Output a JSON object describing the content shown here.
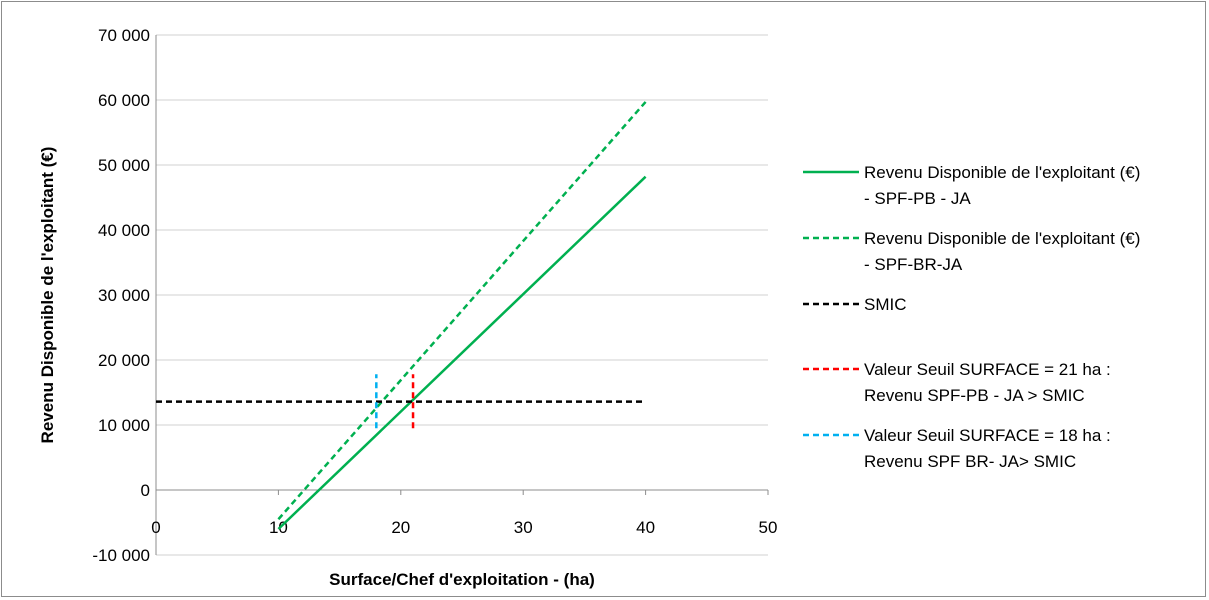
{
  "chart_data": {
    "type": "line",
    "title": "",
    "xlabel": "Surface/Chef d'exploitation - (ha)",
    "ylabel": "Revenu Disponible de l'exploitant (€)",
    "xlim": [
      0,
      50
    ],
    "ylim": [
      -10000,
      70000
    ],
    "x_ticks": [
      0,
      10,
      20,
      30,
      40,
      50
    ],
    "x_tick_labels": [
      "0",
      "10",
      "20",
      "30",
      "40",
      "50"
    ],
    "y_ticks": [
      -10000,
      0,
      10000,
      20000,
      30000,
      40000,
      50000,
      60000,
      70000
    ],
    "y_tick_labels": [
      "-10 000",
      "0",
      "10 000",
      "20 000",
      "30 000",
      "40 000",
      "50 000",
      "60 000",
      "70 000"
    ],
    "grid": "horizontal",
    "legend_position": "right",
    "series": [
      {
        "name": "Revenu Disponible de l'exploitant (€) - SPF-PB - JA",
        "legend_lines": [
          "Revenu Disponible de l'exploitant (€)",
          "- SPF-PB - JA"
        ],
        "color": "#00b050",
        "style": "solid",
        "x": [
          10,
          40
        ],
        "y": [
          -6000,
          48200
        ]
      },
      {
        "name": "Revenu Disponible de l'exploitant (€) - SPF-BR-JA",
        "legend_lines": [
          "Revenu Disponible de l'exploitant (€)",
          "- SPF-BR-JA"
        ],
        "color": "#00b050",
        "style": "dashed",
        "x": [
          10,
          40
        ],
        "y": [
          -4500,
          59700
        ]
      },
      {
        "name": "SMIC",
        "legend_lines": [
          "SMIC"
        ],
        "color": "#000000",
        "style": "dashed",
        "x": [
          0,
          40
        ],
        "y": [
          13600,
          13600
        ]
      },
      {
        "name": "Valeur Seuil SURFACE = 21 ha : Revenu SPF-PB - JA > SMIC",
        "legend_lines": [
          "Valeur Seuil SURFACE = 21 ha :",
          "Revenu SPF-PB - JA > SMIC"
        ],
        "color": "#ff0000",
        "style": "dashed",
        "x": [
          21,
          21
        ],
        "y": [
          9500,
          17800
        ]
      },
      {
        "name": "Valeur Seuil SURFACE = 18 ha : Revenu SPF BR- JA> SMIC",
        "legend_lines": [
          "Valeur Seuil SURFACE = 18 ha :",
          "Revenu SPF BR- JA> SMIC"
        ],
        "color": "#00b0f0",
        "style": "dashed",
        "x": [
          18,
          18
        ],
        "y": [
          9500,
          17800
        ]
      }
    ]
  }
}
